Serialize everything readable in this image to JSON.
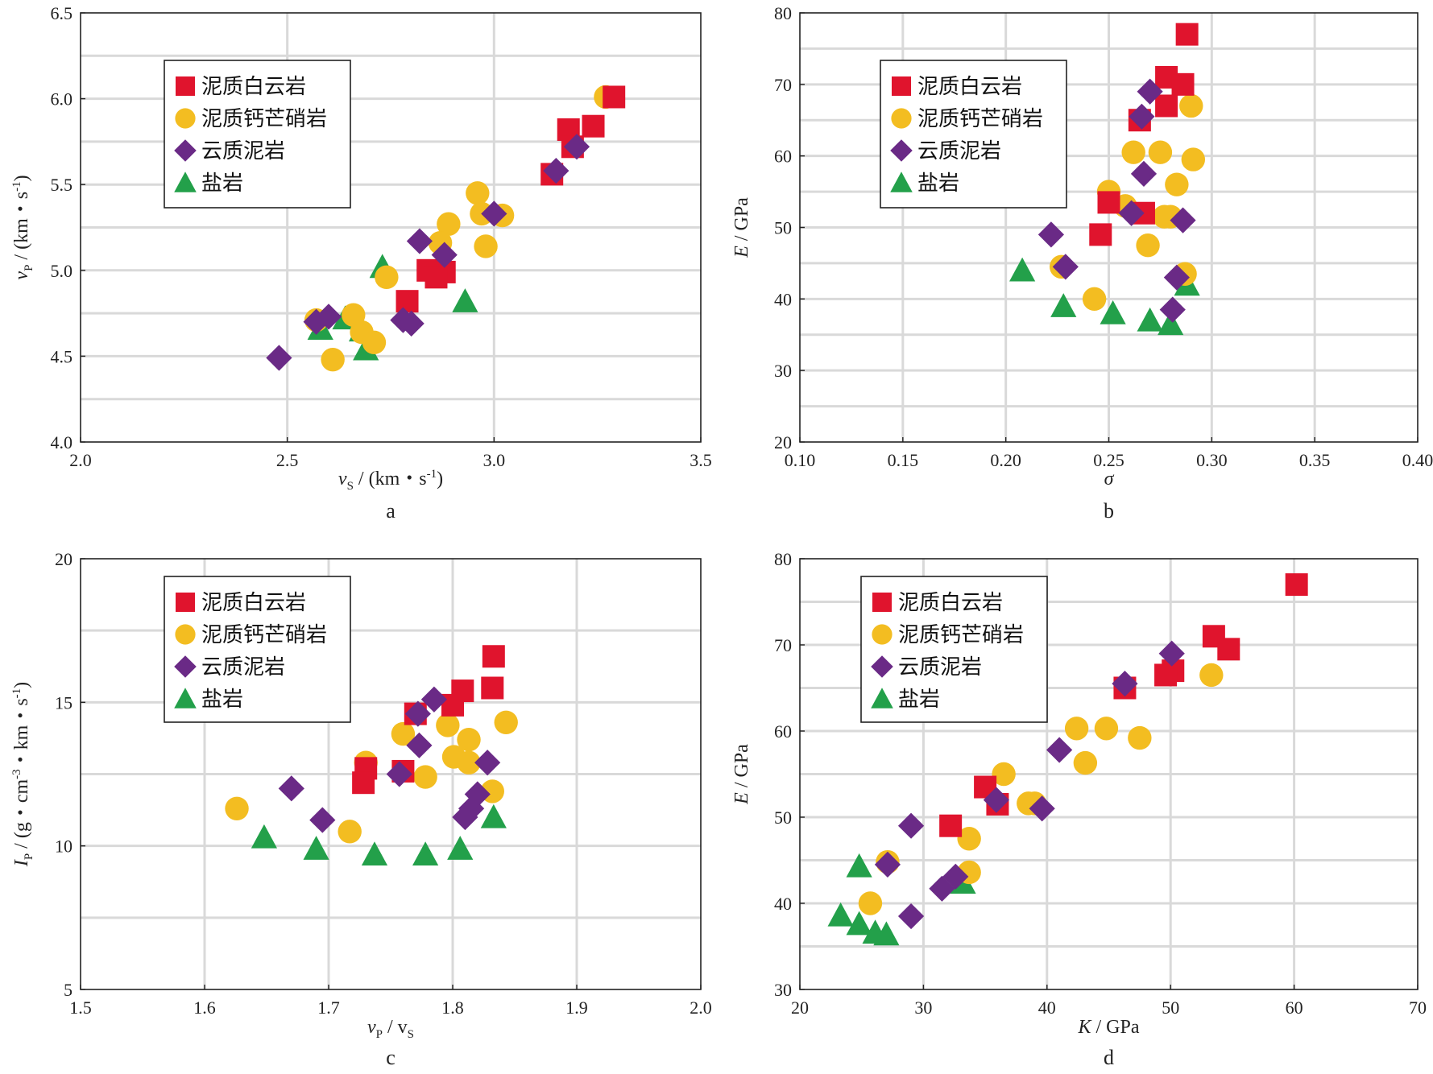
{
  "colors": {
    "dolomite": "#e0142d",
    "glauberite": "#f3bd21",
    "mudstone": "#6a2a86",
    "salt": "#23a04a"
  },
  "legend": [
    {
      "key": "dolomite",
      "label": "泥质白云岩",
      "shape": "square"
    },
    {
      "key": "glauberite",
      "label": "泥质钙芒硝岩",
      "shape": "circle"
    },
    {
      "key": "mudstone",
      "label": "云质泥岩",
      "shape": "diamond"
    },
    {
      "key": "salt",
      "label": "盐岩",
      "shape": "triangle"
    }
  ],
  "chart_data": [
    {
      "panel": "a",
      "type": "scatter",
      "xlabel": {
        "main": "v",
        "sub": "S",
        "rest": " / (km・s",
        "sup": "-1",
        "end": ")"
      },
      "ylabel": {
        "main": "v",
        "sub": "P",
        "rest": " / (km・s",
        "sup": "-1",
        "end": ")"
      },
      "xlim": [
        2.0,
        3.5
      ],
      "ylim": [
        4.0,
        6.5
      ],
      "xticks": [
        2.0,
        2.5,
        3.0,
        3.5
      ],
      "xtick_labels": [
        "2.0",
        "2.5",
        "3.0",
        "3.5"
      ],
      "yticks": [
        4.0,
        4.5,
        5.0,
        5.5,
        6.0,
        6.5
      ],
      "ytick_labels": [
        "4.0",
        "4.5",
        "5.0",
        "5.5",
        "6.0",
        "6.5"
      ],
      "series": [
        {
          "key": "dolomite",
          "x": [
            3.29,
            3.24,
            3.18,
            3.19,
            3.14,
            2.88,
            2.84,
            2.86,
            2.79
          ],
          "y": [
            6.01,
            5.84,
            5.82,
            5.72,
            5.56,
            4.99,
            5.0,
            4.96,
            4.82
          ]
        },
        {
          "key": "glauberite",
          "x": [
            3.27,
            2.96,
            2.97,
            3.02,
            2.89,
            2.87,
            2.98,
            2.74,
            2.57,
            2.66,
            2.68,
            2.71,
            2.61
          ],
          "y": [
            6.01,
            5.45,
            5.33,
            5.32,
            5.27,
            5.16,
            5.14,
            4.96,
            4.71,
            4.74,
            4.64,
            4.58,
            4.48
          ]
        },
        {
          "key": "mudstone",
          "x": [
            3.2,
            3.15,
            3.0,
            2.82,
            2.88,
            2.57,
            2.6,
            2.78,
            2.8,
            2.48
          ],
          "y": [
            5.72,
            5.58,
            5.33,
            5.17,
            5.09,
            4.7,
            4.73,
            4.71,
            4.69,
            4.49
          ]
        },
        {
          "key": "salt",
          "x": [
            2.73,
            2.93,
            2.58,
            2.64,
            2.68,
            2.69
          ],
          "y": [
            5.02,
            4.82,
            4.66,
            4.72,
            4.65,
            4.54
          ]
        }
      ],
      "legend_position": "top-left",
      "grid": true,
      "caption": "a"
    },
    {
      "panel": "b",
      "type": "scatter",
      "xlabel": {
        "main": "σ",
        "sub": "",
        "rest": "",
        "sup": "",
        "end": ""
      },
      "ylabel": {
        "main": "E",
        "sub": "",
        "rest": " / GPa",
        "sup": "",
        "end": ""
      },
      "xlim": [
        0.1,
        0.4
      ],
      "ylim": [
        20,
        80
      ],
      "xticks": [
        0.1,
        0.15,
        0.2,
        0.25,
        0.3,
        0.35,
        0.4
      ],
      "xtick_labels": [
        "0.10",
        "0.15",
        "0.20",
        "0.25",
        "0.30",
        "0.35",
        "0.40"
      ],
      "yticks": [
        20,
        30,
        40,
        50,
        60,
        70,
        80
      ],
      "ytick_labels": [
        "20",
        "30",
        "40",
        "50",
        "60",
        "70",
        "80"
      ],
      "series": [
        {
          "key": "dolomite",
          "x": [
            0.288,
            0.278,
            0.286,
            0.278,
            0.265,
            0.25,
            0.267,
            0.246
          ],
          "y": [
            77,
            71,
            70,
            67,
            65,
            53.5,
            52,
            49
          ]
        },
        {
          "key": "glauberite",
          "x": [
            0.29,
            0.262,
            0.275,
            0.291,
            0.283,
            0.25,
            0.258,
            0.28,
            0.277,
            0.269,
            0.227,
            0.243,
            0.287
          ],
          "y": [
            67,
            60.5,
            60.5,
            59.5,
            56,
            55,
            53,
            51.5,
            51.5,
            47.5,
            44.5,
            40,
            43.5
          ]
        },
        {
          "key": "mudstone",
          "x": [
            0.27,
            0.266,
            0.267,
            0.261,
            0.286,
            0.222,
            0.229,
            0.283,
            0.281
          ],
          "y": [
            69,
            65.5,
            57.5,
            52,
            51,
            49,
            44.5,
            43,
            38.5
          ]
        },
        {
          "key": "salt",
          "x": [
            0.208,
            0.288,
            0.228,
            0.252,
            0.27,
            0.28
          ],
          "y": [
            44,
            42,
            39,
            38,
            37,
            36.5
          ]
        }
      ],
      "legend_position": "top-left",
      "grid": true,
      "caption": "b"
    },
    {
      "panel": "c",
      "type": "scatter",
      "xlabel": {
        "main": "v",
        "sub": "P",
        "rest": " / v",
        "sub2": "S",
        "end": ""
      },
      "ylabel": {
        "main": "I",
        "sub": "P",
        "rest": " / (g・cm",
        "sup": "-3",
        "end": "・km・s",
        "sup2": "-1",
        "end2": ")"
      },
      "xlim": [
        1.5,
        2.0
      ],
      "ylim": [
        5,
        20
      ],
      "xticks": [
        1.5,
        1.6,
        1.7,
        1.8,
        1.9,
        2.0
      ],
      "xtick_labels": [
        "1.5",
        "1.6",
        "1.7",
        "1.8",
        "1.9",
        "2.0"
      ],
      "yticks": [
        5,
        10,
        15,
        20
      ],
      "ytick_labels": [
        "5",
        "10",
        "15",
        "20"
      ],
      "series": [
        {
          "key": "dolomite",
          "x": [
            1.833,
            1.832,
            1.808,
            1.8,
            1.77,
            1.73,
            1.728,
            1.76
          ],
          "y": [
            16.6,
            15.5,
            15.4,
            14.9,
            14.6,
            12.7,
            12.2,
            12.6
          ]
        },
        {
          "key": "glauberite",
          "x": [
            1.843,
            1.796,
            1.813,
            1.76,
            1.801,
            1.813,
            1.778,
            1.832,
            1.717,
            1.626,
            1.73
          ],
          "y": [
            14.3,
            14.2,
            13.7,
            13.9,
            13.1,
            12.9,
            12.4,
            11.9,
            10.5,
            11.3,
            12.9
          ]
        },
        {
          "key": "mudstone",
          "x": [
            1.785,
            1.772,
            1.773,
            1.828,
            1.757,
            1.67,
            1.82,
            1.815,
            1.81,
            1.695
          ],
          "y": [
            15.1,
            14.6,
            13.5,
            12.9,
            12.5,
            12.0,
            11.8,
            11.3,
            11.0,
            10.9
          ]
        },
        {
          "key": "salt",
          "x": [
            1.833,
            1.648,
            1.69,
            1.737,
            1.778,
            1.806
          ],
          "y": [
            11.0,
            10.3,
            9.9,
            9.7,
            9.7,
            9.9
          ]
        }
      ],
      "legend_position": "top-left",
      "grid": true,
      "caption": "c"
    },
    {
      "panel": "d",
      "type": "scatter",
      "xlabel": {
        "main": "K",
        "sub": "",
        "rest": " / GPa",
        "sup": "",
        "end": ""
      },
      "ylabel": {
        "main": "E",
        "sub": "",
        "rest": " / GPa",
        "sup": "",
        "end": ""
      },
      "xlim": [
        20,
        70
      ],
      "ylim": [
        30,
        80
      ],
      "xticks": [
        20,
        30,
        40,
        50,
        60,
        70
      ],
      "xtick_labels": [
        "20",
        "30",
        "40",
        "50",
        "60",
        "70"
      ],
      "yticks": [
        30,
        40,
        50,
        60,
        70,
        80
      ],
      "ytick_labels": [
        "30",
        "40",
        "50",
        "60",
        "70",
        "80"
      ],
      "series": [
        {
          "key": "dolomite",
          "x": [
            60.2,
            53.5,
            54.7,
            50.2,
            49.6,
            46.3,
            35.0,
            36.0,
            32.2
          ],
          "y": [
            77,
            71,
            69.5,
            67,
            66.5,
            65,
            53.5,
            51.5,
            49
          ]
        },
        {
          "key": "glauberite",
          "x": [
            53.3,
            42.4,
            44.8,
            47.5,
            43.1,
            36.5,
            38.5,
            39.0,
            33.7,
            33.7,
            27.1,
            25.7
          ],
          "y": [
            66.5,
            60.3,
            60.3,
            59.2,
            56.3,
            55.0,
            51.6,
            51.6,
            47.5,
            43.6,
            44.8,
            40
          ]
        },
        {
          "key": "mudstone",
          "x": [
            50.1,
            46.3,
            41.0,
            35.9,
            39.6,
            29.0,
            27.1,
            32.6,
            31.5,
            29.0
          ],
          "y": [
            69,
            65.5,
            57.8,
            52,
            51,
            49,
            44.5,
            43.1,
            41.7,
            38.5
          ]
        },
        {
          "key": "salt",
          "x": [
            24.8,
            33.2,
            23.3,
            24.8,
            26.1,
            27.0
          ],
          "y": [
            44.3,
            42.4,
            38.6,
            37.6,
            36.6,
            36.4
          ]
        }
      ],
      "legend_position": "top-left",
      "grid": true,
      "caption": "d"
    }
  ]
}
